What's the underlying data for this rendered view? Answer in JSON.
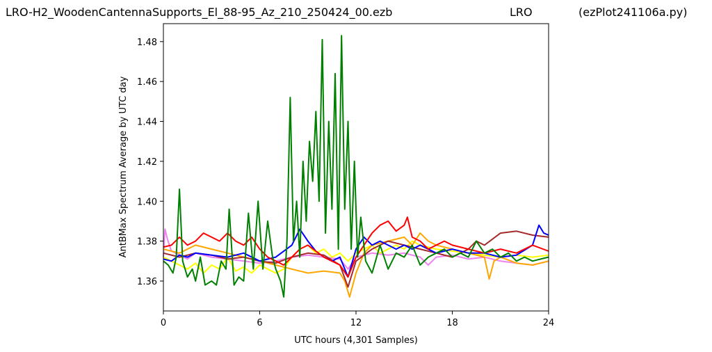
{
  "header": {
    "filename": "LRO-H2_WoodenCantennaSupports_El_88-95_Az_210_250424_00.ezb",
    "station": "LRO",
    "script": "(ezPlot241106a.py)"
  },
  "chart_data": {
    "type": "line",
    "xlabel": "UTC hours  (4,301 Samples)",
    "ylabel": "AntBMax Spectrum Average by UTC day",
    "xlim": [
      0,
      24
    ],
    "ylim": [
      1.345,
      1.489
    ],
    "xticks": [
      0,
      6,
      12,
      18,
      24
    ],
    "xtick_labels": [
      "0",
      "6",
      "12",
      "18",
      "24"
    ],
    "yticks": [
      1.36,
      1.38,
      1.4,
      1.42,
      1.44,
      1.46,
      1.48
    ],
    "ytick_labels": [
      "1.36",
      "1.38",
      "1.40",
      "1.42",
      "1.44",
      "1.46",
      "1.48"
    ],
    "grid": false,
    "legend": "none",
    "series": [
      {
        "color": "#ee82ee",
        "x": [
          0,
          0.1,
          0.25,
          0.5,
          1,
          1.5,
          2,
          3,
          4,
          5,
          6,
          7,
          8,
          9,
          10,
          11,
          11.5,
          12,
          13,
          14,
          15,
          16,
          16.5,
          17,
          18,
          19,
          20,
          21,
          22,
          23,
          24
        ],
        "y": [
          1.372,
          1.386,
          1.381,
          1.375,
          1.373,
          1.371,
          1.374,
          1.372,
          1.371,
          1.37,
          1.369,
          1.37,
          1.372,
          1.373,
          1.372,
          1.371,
          1.366,
          1.372,
          1.374,
          1.373,
          1.374,
          1.372,
          1.368,
          1.372,
          1.373,
          1.371,
          1.372,
          1.37,
          1.369,
          1.368,
          1.37
        ]
      },
      {
        "color": "#ffff00",
        "x": [
          0,
          0.5,
          1,
          1.5,
          2,
          2.5,
          3,
          3.5,
          4,
          4.5,
          5,
          5.5,
          6,
          6.5,
          7,
          7.5,
          8,
          8.5,
          9,
          9.5,
          10,
          10.5,
          11,
          11.5,
          12,
          12.5,
          13,
          13.5,
          14,
          14.5,
          15,
          15.5,
          16,
          17,
          18,
          19,
          20,
          21,
          22,
          23,
          24
        ],
        "y": [
          1.372,
          1.37,
          1.368,
          1.366,
          1.369,
          1.364,
          1.368,
          1.366,
          1.372,
          1.365,
          1.367,
          1.364,
          1.368,
          1.366,
          1.364,
          1.366,
          1.372,
          1.376,
          1.378,
          1.374,
          1.376,
          1.372,
          1.374,
          1.37,
          1.374,
          1.376,
          1.378,
          1.374,
          1.376,
          1.378,
          1.376,
          1.38,
          1.378,
          1.376,
          1.375,
          1.374,
          1.373,
          1.372,
          1.373,
          1.372,
          1.373
        ]
      },
      {
        "color": "#ffa500",
        "x": [
          0,
          1,
          2,
          3,
          4,
          5,
          6,
          7,
          8,
          9,
          10,
          11,
          11.3,
          11.6,
          11.8,
          12,
          12.5,
          13,
          14,
          15,
          15.5,
          16,
          16.5,
          17,
          18,
          19,
          20,
          20.3,
          20.6,
          21,
          22,
          23,
          24
        ],
        "y": [
          1.376,
          1.374,
          1.378,
          1.376,
          1.374,
          1.372,
          1.37,
          1.368,
          1.366,
          1.364,
          1.365,
          1.364,
          1.36,
          1.352,
          1.358,
          1.364,
          1.374,
          1.378,
          1.38,
          1.382,
          1.378,
          1.384,
          1.38,
          1.378,
          1.376,
          1.374,
          1.372,
          1.361,
          1.37,
          1.372,
          1.369,
          1.368,
          1.37
        ]
      },
      {
        "color": "#a52a2a",
        "x": [
          0,
          1,
          2,
          3,
          4,
          5,
          6,
          7,
          8,
          9,
          10,
          11,
          11.5,
          12,
          13,
          14,
          15,
          16,
          17,
          18,
          19,
          19.5,
          20,
          21,
          22,
          23,
          24
        ],
        "y": [
          1.374,
          1.372,
          1.374,
          1.373,
          1.371,
          1.372,
          1.37,
          1.369,
          1.372,
          1.374,
          1.373,
          1.368,
          1.357,
          1.37,
          1.376,
          1.38,
          1.378,
          1.376,
          1.374,
          1.372,
          1.376,
          1.38,
          1.378,
          1.384,
          1.385,
          1.383,
          1.382
        ]
      },
      {
        "color": "#0000ff",
        "x": [
          0,
          0.5,
          1,
          1.5,
          2,
          3,
          4,
          5,
          6,
          7,
          8,
          8.5,
          9,
          9.5,
          10,
          10.5,
          11,
          11.5,
          12,
          12.5,
          13,
          13.5,
          14,
          14.5,
          15,
          15.5,
          16,
          17,
          18,
          19,
          20,
          21,
          22,
          23,
          23.4,
          23.7,
          24
        ],
        "y": [
          1.371,
          1.37,
          1.373,
          1.372,
          1.374,
          1.373,
          1.372,
          1.374,
          1.37,
          1.372,
          1.378,
          1.386,
          1.38,
          1.375,
          1.372,
          1.37,
          1.372,
          1.362,
          1.376,
          1.382,
          1.378,
          1.38,
          1.378,
          1.376,
          1.378,
          1.376,
          1.378,
          1.374,
          1.376,
          1.374,
          1.374,
          1.372,
          1.373,
          1.378,
          1.388,
          1.384,
          1.383
        ]
      },
      {
        "color": "#ff0000",
        "x": [
          0,
          0.5,
          1,
          1.5,
          2,
          2.5,
          3,
          3.5,
          4,
          4.5,
          5,
          5.5,
          6,
          6.5,
          7,
          7.5,
          8,
          8.5,
          9,
          9.5,
          10,
          10.5,
          11,
          11.5,
          12,
          12.5,
          13,
          13.5,
          14,
          14.5,
          15,
          15.2,
          15.5,
          16,
          16.5,
          17,
          17.5,
          18,
          19,
          20,
          21,
          22,
          23,
          24
        ],
        "y": [
          1.377,
          1.378,
          1.382,
          1.378,
          1.38,
          1.384,
          1.382,
          1.38,
          1.384,
          1.38,
          1.378,
          1.382,
          1.376,
          1.372,
          1.37,
          1.368,
          1.372,
          1.376,
          1.378,
          1.375,
          1.372,
          1.37,
          1.368,
          1.362,
          1.372,
          1.378,
          1.384,
          1.388,
          1.39,
          1.385,
          1.388,
          1.392,
          1.382,
          1.38,
          1.376,
          1.378,
          1.38,
          1.378,
          1.376,
          1.374,
          1.376,
          1.374,
          1.378,
          1.375
        ]
      },
      {
        "color": "#008000",
        "x": [
          0,
          0.3,
          0.6,
          0.8,
          1.0,
          1.2,
          1.5,
          1.8,
          2.0,
          2.3,
          2.6,
          3.0,
          3.3,
          3.6,
          3.9,
          4.1,
          4.4,
          4.7,
          5.0,
          5.3,
          5.6,
          5.9,
          6.2,
          6.5,
          6.8,
          7.0,
          7.3,
          7.5,
          7.7,
          7.9,
          8.1,
          8.3,
          8.5,
          8.7,
          8.9,
          9.1,
          9.3,
          9.5,
          9.7,
          9.9,
          10.1,
          10.3,
          10.5,
          10.7,
          10.9,
          11.1,
          11.3,
          11.5,
          11.7,
          11.9,
          12.1,
          12.3,
          12.6,
          13.0,
          13.5,
          14.0,
          14.5,
          15.0,
          15.5,
          16.0,
          16.5,
          17.0,
          17.5,
          18.0,
          18.5,
          19.0,
          19.5,
          20.0,
          20.5,
          21.0,
          21.5,
          22.0,
          22.5,
          23.0,
          23.5,
          24.0
        ],
        "y": [
          1.37,
          1.368,
          1.364,
          1.372,
          1.406,
          1.37,
          1.362,
          1.366,
          1.36,
          1.372,
          1.358,
          1.36,
          1.358,
          1.37,
          1.366,
          1.396,
          1.358,
          1.362,
          1.36,
          1.394,
          1.366,
          1.4,
          1.366,
          1.39,
          1.372,
          1.366,
          1.36,
          1.352,
          1.38,
          1.452,
          1.38,
          1.4,
          1.372,
          1.42,
          1.39,
          1.43,
          1.41,
          1.445,
          1.4,
          1.481,
          1.384,
          1.44,
          1.396,
          1.464,
          1.376,
          1.483,
          1.396,
          1.44,
          1.376,
          1.42,
          1.372,
          1.392,
          1.37,
          1.364,
          1.378,
          1.366,
          1.374,
          1.372,
          1.378,
          1.368,
          1.372,
          1.374,
          1.376,
          1.372,
          1.374,
          1.372,
          1.38,
          1.374,
          1.376,
          1.372,
          1.374,
          1.37,
          1.372,
          1.37,
          1.371,
          1.372
        ]
      }
    ]
  }
}
